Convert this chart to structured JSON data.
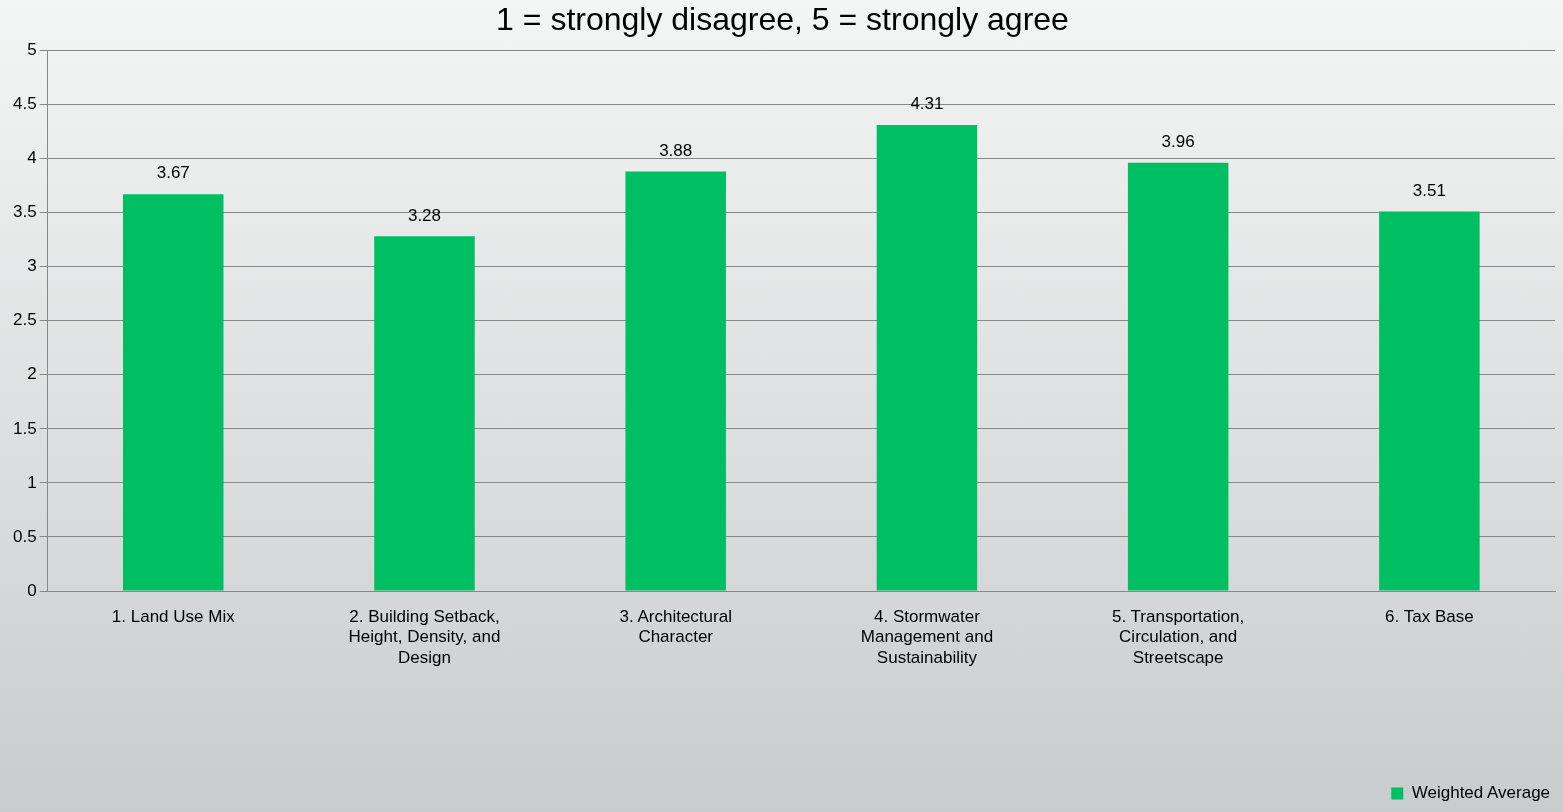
{
  "chart_data": {
    "type": "bar",
    "title": "1 = strongly disagree, 5 = strongly agree",
    "categories": [
      "1. Land Use Mix",
      "2. Building Setback, Height, Density, and Design",
      "3. Architectural Character",
      "4. Stormwater Management and Sustainability",
      "5. Transportation, Circulation, and Streetscape",
      "6. Tax Base"
    ],
    "series": [
      {
        "name": "Weighted Average",
        "color": "#00bf63",
        "values": [
          3.67,
          3.28,
          3.88,
          4.31,
          3.96,
          3.51
        ]
      }
    ],
    "ylim": [
      0,
      5
    ],
    "yticks": [
      0,
      0.5,
      1,
      1.5,
      2,
      2.5,
      3,
      3.5,
      4,
      4.5,
      5
    ],
    "grid": "y",
    "legend": "bottom right",
    "data_labels": true
  }
}
